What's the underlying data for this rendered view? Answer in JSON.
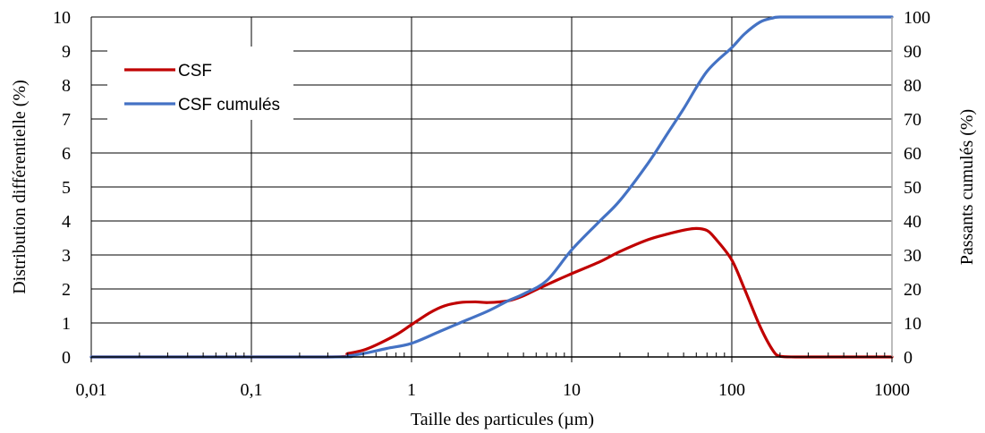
{
  "chart_data": {
    "type": "line",
    "xlabel": "Taille des particules (µm)",
    "ylabel_left": "Distribution différentielle (%)",
    "ylabel_right": "Passants cumulés  (%)",
    "x_scale": "log",
    "xlim": [
      0.01,
      1000
    ],
    "ylim_left": [
      0,
      10
    ],
    "ylim_right": [
      0,
      100
    ],
    "grid": true,
    "legend_placement": "top-left",
    "x_ticks": [
      0.01,
      0.1,
      1,
      10,
      100,
      1000
    ],
    "x_tick_labels": [
      "0,01",
      "0,1",
      "1",
      "10",
      "100",
      "1000"
    ],
    "y_left_ticks": [
      "0",
      "1",
      "2",
      "3",
      "4",
      "5",
      "6",
      "7",
      "8",
      "9",
      "10"
    ],
    "y_right_ticks": [
      "0",
      "10",
      "20",
      "30",
      "40",
      "50",
      "60",
      "70",
      "80",
      "90",
      "100"
    ],
    "series": [
      {
        "name": "CSF",
        "axis": "left",
        "color": "#C00000",
        "x": [
          0.01,
          0.3,
          0.4,
          0.5,
          0.6,
          0.8,
          1,
          1.3,
          1.6,
          2,
          2.5,
          3,
          4,
          5,
          6,
          8,
          10,
          15,
          20,
          30,
          40,
          50,
          60,
          70,
          80,
          100,
          120,
          150,
          180,
          200,
          250,
          500,
          1000
        ],
        "values": [
          0,
          0,
          0.1,
          0.2,
          0.35,
          0.65,
          0.95,
          1.3,
          1.5,
          1.6,
          1.62,
          1.6,
          1.65,
          1.8,
          1.98,
          2.25,
          2.45,
          2.8,
          3.1,
          3.45,
          3.62,
          3.73,
          3.78,
          3.72,
          3.45,
          2.85,
          2.0,
          0.9,
          0.2,
          0.02,
          0,
          0,
          0
        ]
      },
      {
        "name": "CSF cumulés",
        "axis": "right",
        "color": "#4472C4",
        "x": [
          0.01,
          0.3,
          0.4,
          0.5,
          0.7,
          1,
          1.5,
          2,
          3,
          4,
          5,
          7,
          10,
          15,
          20,
          30,
          40,
          50,
          70,
          100,
          120,
          150,
          180,
          200,
          300,
          1000
        ],
        "values": [
          0,
          0,
          0.3,
          1,
          2.5,
          4,
          7.5,
          10,
          13.5,
          16.5,
          18.5,
          22.5,
          31.5,
          40,
          46,
          57,
          66,
          73,
          84,
          91,
          95,
          98.5,
          99.7,
          100,
          100,
          100
        ]
      }
    ]
  }
}
